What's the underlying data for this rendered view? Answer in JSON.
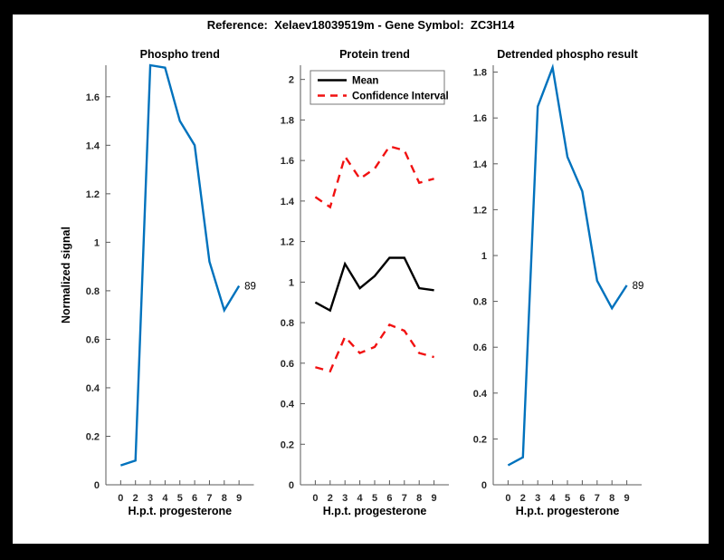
{
  "figure": {
    "suptitle": "Reference:  Xelaev18039519m - Gene Symbol:  ZC3H14"
  },
  "colors": {
    "frame": "#000000",
    "canvas": "#ffffff",
    "spine": "#5a5a5a",
    "text": "#262626",
    "title_text": "#000000",
    "blue": "#0072bd",
    "red": "#f11111",
    "black": "#000000",
    "legend_border": "#777777"
  },
  "chart_data": [
    {
      "type": "line",
      "title": "Phospho trend",
      "xlabel": "H.p.t. progesterone",
      "ylabel": "Normalized signal",
      "x_ticklabels": [
        "0",
        "2",
        "3",
        "4",
        "5",
        "6",
        "7",
        "8",
        "9"
      ],
      "ylim": [
        0,
        1.73
      ],
      "yticks": [
        0,
        0.2,
        0.4,
        0.6,
        0.8,
        1,
        1.2,
        1.4,
        1.6
      ],
      "ytick_labels": [
        "0",
        "0.2",
        "0.4",
        "0.6",
        "0.8",
        "1",
        "1.2",
        "1.4",
        "1.6"
      ],
      "grid": false,
      "series": [
        {
          "name": "phospho-signal",
          "color": "blue",
          "dash": false,
          "values": [
            0.08,
            0.1,
            1.73,
            1.72,
            1.5,
            1.4,
            0.92,
            0.72,
            0.82
          ]
        }
      ],
      "end_label": "89"
    },
    {
      "type": "line",
      "title": "Protein trend",
      "xlabel": "H.p.t. progesterone",
      "ylabel": "",
      "x_ticklabels": [
        "0",
        "2",
        "3",
        "4",
        "5",
        "6",
        "7",
        "8",
        "9"
      ],
      "ylim": [
        0,
        2.07
      ],
      "yticks": [
        0,
        0.2,
        0.4,
        0.6,
        0.8,
        1,
        1.2,
        1.4,
        1.6,
        1.8,
        2
      ],
      "ytick_labels": [
        "0",
        "0.2",
        "0.4",
        "0.6",
        "0.8",
        "1",
        "1.2",
        "1.4",
        "1.6",
        "1.8",
        "2"
      ],
      "grid": false,
      "legend": {
        "position": "top-left",
        "entries": [
          {
            "label": "Mean",
            "color": "black",
            "dash": false
          },
          {
            "label": "Confidence Interval",
            "color": "red",
            "dash": true
          }
        ]
      },
      "series": [
        {
          "name": "mean",
          "color": "black",
          "dash": false,
          "values": [
            0.9,
            0.86,
            1.09,
            0.97,
            1.03,
            1.12,
            1.12,
            0.97,
            0.96
          ]
        },
        {
          "name": "confidence-interval-upper",
          "color": "red",
          "dash": true,
          "values": [
            1.42,
            1.37,
            1.62,
            1.51,
            1.56,
            1.67,
            1.65,
            1.49,
            1.51
          ]
        },
        {
          "name": "confidence-interval-lower",
          "color": "red",
          "dash": true,
          "values": [
            0.58,
            0.56,
            0.73,
            0.65,
            0.68,
            0.79,
            0.76,
            0.65,
            0.63
          ]
        }
      ]
    },
    {
      "type": "line",
      "title": "Detrended phospho result",
      "xlabel": "H.p.t. progesterone",
      "ylabel": "",
      "x_ticklabels": [
        "0",
        "2",
        "3",
        "4",
        "5",
        "6",
        "7",
        "8",
        "9"
      ],
      "ylim": [
        0,
        1.83
      ],
      "yticks": [
        0,
        0.2,
        0.4,
        0.6,
        0.8,
        1,
        1.2,
        1.4,
        1.6,
        1.8
      ],
      "ytick_labels": [
        "0",
        "0.2",
        "0.4",
        "0.6",
        "0.8",
        "1",
        "1.2",
        "1.4",
        "1.6",
        "1.8"
      ],
      "grid": false,
      "series": [
        {
          "name": "detrended-phospho-signal",
          "color": "blue",
          "dash": false,
          "values": [
            0.085,
            0.12,
            1.65,
            1.82,
            1.43,
            1.28,
            0.89,
            0.77,
            0.87
          ]
        }
      ],
      "end_label": "89"
    }
  ]
}
